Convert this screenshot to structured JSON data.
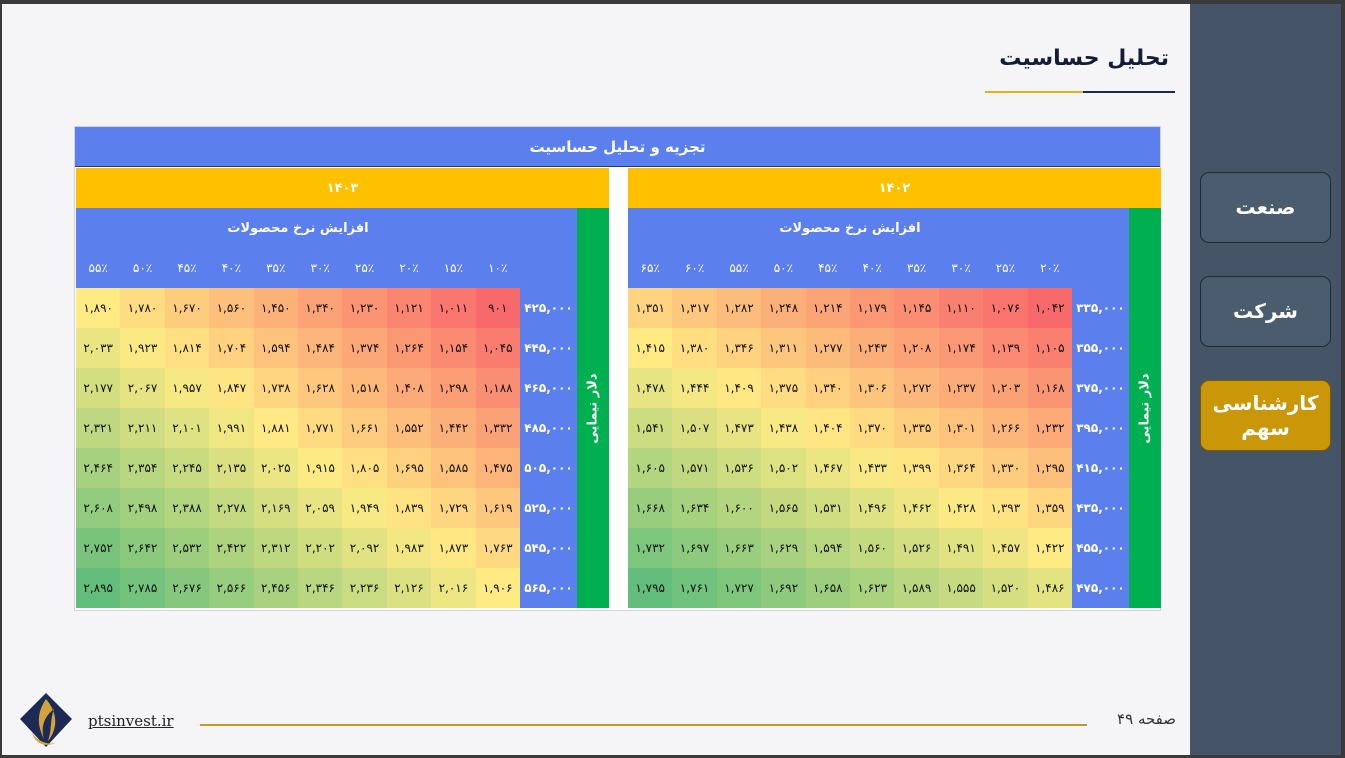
{
  "title": "تحلیل حساسیت",
  "sidebar": {
    "items": [
      {
        "label": "صنعت",
        "active": false
      },
      {
        "label": "شرکت",
        "active": false
      },
      {
        "label": "کارشناسی سهم",
        "active": true
      }
    ]
  },
  "table": {
    "title": "تجزیه و تحلیل حساسیت",
    "row_axis_label": "دلار نیمایی",
    "column_axis_label": "افزایش نرخ محصولات",
    "colors": {
      "header": "#5b7fec",
      "year": "#ffc000",
      "side": "#00b050",
      "low": "#f8696b",
      "mid": "#ffeb84",
      "high": "#63be7b"
    },
    "tables": [
      {
        "year": "۱۴۰۲",
        "columns": [
          "۲۰٪",
          "۲۵٪",
          "۳۰٪",
          "۳۵٪",
          "۴۰٪",
          "۴۵٪",
          "۵۰٪",
          "۵۵٪",
          "۶۰٪",
          "۶۵٪"
        ],
        "rows": [
          "۳۳۵,۰۰۰",
          "۳۵۵,۰۰۰",
          "۳۷۵,۰۰۰",
          "۳۹۵,۰۰۰",
          "۴۱۵,۰۰۰",
          "۴۳۵,۰۰۰",
          "۴۵۵,۰۰۰",
          "۴۷۵,۰۰۰"
        ],
        "cells": [
          [
            "۱,۰۴۲",
            "۱,۰۷۶",
            "۱,۱۱۰",
            "۱,۱۴۵",
            "۱,۱۷۹",
            "۱,۲۱۴",
            "۱,۲۴۸",
            "۱,۲۸۲",
            "۱,۳۱۷",
            "۱,۳۵۱"
          ],
          [
            "۱,۱۰۵",
            "۱,۱۳۹",
            "۱,۱۷۴",
            "۱,۲۰۸",
            "۱,۲۴۳",
            "۱,۲۷۷",
            "۱,۳۱۱",
            "۱,۳۴۶",
            "۱,۳۸۰",
            "۱,۴۱۵"
          ],
          [
            "۱,۱۶۸",
            "۱,۲۰۳",
            "۱,۲۳۷",
            "۱,۲۷۲",
            "۱,۳۰۶",
            "۱,۳۴۰",
            "۱,۳۷۵",
            "۱,۴۰۹",
            "۱,۴۴۴",
            "۱,۴۷۸"
          ],
          [
            "۱,۲۳۲",
            "۱,۲۶۶",
            "۱,۳۰۱",
            "۱,۳۳۵",
            "۱,۳۷۰",
            "۱,۴۰۴",
            "۱,۴۳۸",
            "۱,۴۷۳",
            "۱,۵۰۷",
            "۱,۵۴۱"
          ],
          [
            "۱,۲۹۵",
            "۱,۳۳۰",
            "۱,۳۶۴",
            "۱,۳۹۹",
            "۱,۴۳۳",
            "۱,۴۶۷",
            "۱,۵۰۲",
            "۱,۵۳۶",
            "۱,۵۷۱",
            "۱,۶۰۵"
          ],
          [
            "۱,۳۵۹",
            "۱,۳۹۳",
            "۱,۴۲۸",
            "۱,۴۶۲",
            "۱,۴۹۶",
            "۱,۵۳۱",
            "۱,۵۶۵",
            "۱,۶۰۰",
            "۱,۶۳۴",
            "۱,۶۶۸"
          ],
          [
            "۱,۴۲۲",
            "۱,۴۵۷",
            "۱,۴۹۱",
            "۱,۵۲۶",
            "۱,۵۶۰",
            "۱,۵۹۴",
            "۱,۶۲۹",
            "۱,۶۶۳",
            "۱,۶۹۷",
            "۱,۷۳۲"
          ],
          [
            "۱,۴۸۶",
            "۱,۵۲۰",
            "۱,۵۵۵",
            "۱,۵۸۹",
            "۱,۶۲۳",
            "۱,۶۵۸",
            "۱,۶۹۲",
            "۱,۷۲۷",
            "۱,۷۶۱",
            "۱,۷۹۵"
          ]
        ]
      },
      {
        "year": "۱۴۰۳",
        "columns": [
          "۱۰٪",
          "۱۵٪",
          "۲۰٪",
          "۲۵٪",
          "۳۰٪",
          "۳۵٪",
          "۴۰٪",
          "۴۵٪",
          "۵۰٪",
          "۵۵٪"
        ],
        "rows": [
          "۴۲۵,۰۰۰",
          "۴۴۵,۰۰۰",
          "۴۶۵,۰۰۰",
          "۴۸۵,۰۰۰",
          "۵۰۵,۰۰۰",
          "۵۲۵,۰۰۰",
          "۵۴۵,۰۰۰",
          "۵۶۵,۰۰۰"
        ],
        "cells": [
          [
            "۹۰۱",
            "۱,۰۱۱",
            "۱,۱۲۱",
            "۱,۲۳۰",
            "۱,۳۴۰",
            "۱,۴۵۰",
            "۱,۵۶۰",
            "۱,۶۷۰",
            "۱,۷۸۰",
            "۱,۸۹۰"
          ],
          [
            "۱,۰۴۵",
            "۱,۱۵۴",
            "۱,۲۶۴",
            "۱,۳۷۴",
            "۱,۴۸۴",
            "۱,۵۹۴",
            "۱,۷۰۴",
            "۱,۸۱۴",
            "۱,۹۲۳",
            "۲,۰۳۳"
          ],
          [
            "۱,۱۸۸",
            "۱,۲۹۸",
            "۱,۴۰۸",
            "۱,۵۱۸",
            "۱,۶۲۸",
            "۱,۷۳۸",
            "۱,۸۴۷",
            "۱,۹۵۷",
            "۲,۰۶۷",
            "۲,۱۷۷"
          ],
          [
            "۱,۳۳۲",
            "۱,۴۴۲",
            "۱,۵۵۲",
            "۱,۶۶۱",
            "۱,۷۷۱",
            "۱,۸۸۱",
            "۱,۹۹۱",
            "۲,۱۰۱",
            "۲,۲۱۱",
            "۲,۳۲۱"
          ],
          [
            "۱,۴۷۵",
            "۱,۵۸۵",
            "۱,۶۹۵",
            "۱,۸۰۵",
            "۱,۹۱۵",
            "۲,۰۲۵",
            "۲,۱۳۵",
            "۲,۲۴۵",
            "۲,۳۵۴",
            "۲,۴۶۴"
          ],
          [
            "۱,۶۱۹",
            "۱,۷۲۹",
            "۱,۸۳۹",
            "۱,۹۴۹",
            "۲,۰۵۹",
            "۲,۱۶۹",
            "۲,۲۷۸",
            "۲,۳۸۸",
            "۲,۴۹۸",
            "۲,۶۰۸"
          ],
          [
            "۱,۷۶۳",
            "۱,۸۷۳",
            "۱,۹۸۳",
            "۲,۰۹۲",
            "۲,۲۰۲",
            "۲,۳۱۲",
            "۲,۴۲۲",
            "۲,۵۳۲",
            "۲,۶۴۲",
            "۲,۷۵۲"
          ],
          [
            "۱,۹۰۶",
            "۲,۰۱۶",
            "۲,۱۲۶",
            "۲,۲۳۶",
            "۲,۳۴۶",
            "۲,۴۵۶",
            "۲,۵۶۶",
            "۲,۶۷۶",
            "۲,۷۸۵",
            "۲,۸۹۵"
          ]
        ]
      }
    ]
  },
  "footer": {
    "url": "ptsinvest.ir",
    "page": "صفحه ۴۹"
  },
  "logo_icon": "pts-flame-logo-icon"
}
